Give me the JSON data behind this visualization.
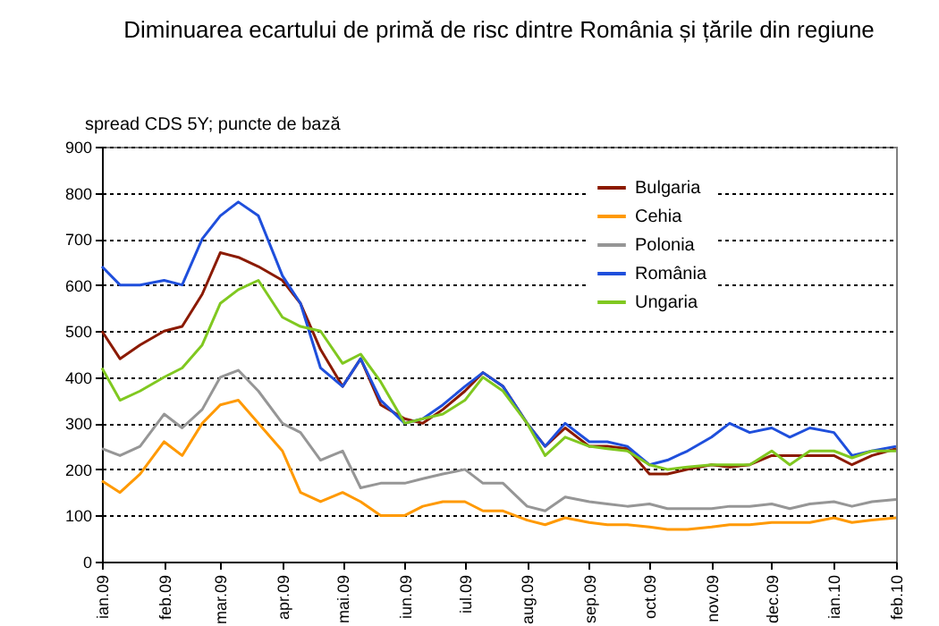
{
  "chart_data": {
    "type": "line",
    "title": "Diminuarea ecartului de primă de risc dintre România și țările din regiune",
    "ylabel": "spread CDS 5Y; puncte de bază",
    "x": [
      "2009-01-01",
      "2009-01-10",
      "2009-01-20",
      "2009-02-01",
      "2009-02-10",
      "2009-02-20",
      "2009-03-01",
      "2009-03-10",
      "2009-03-20",
      "2009-04-01",
      "2009-04-10",
      "2009-04-20",
      "2009-05-01",
      "2009-05-10",
      "2009-05-20",
      "2009-06-01",
      "2009-06-10",
      "2009-06-20",
      "2009-07-01",
      "2009-07-10",
      "2009-07-20",
      "2009-08-01",
      "2009-08-10",
      "2009-08-20",
      "2009-09-01",
      "2009-09-10",
      "2009-09-20",
      "2009-10-01",
      "2009-10-10",
      "2009-10-20",
      "2009-11-01",
      "2009-11-10",
      "2009-11-20",
      "2009-12-01",
      "2009-12-10",
      "2009-12-20",
      "2010-01-01",
      "2010-01-10",
      "2010-01-20",
      "2010-02-01"
    ],
    "series": [
      {
        "name": "Bulgaria",
        "color": "#8b1a00",
        "values": [
          500,
          440,
          470,
          500,
          510,
          580,
          670,
          660,
          640,
          610,
          560,
          460,
          380,
          440,
          340,
          310,
          300,
          330,
          370,
          410,
          380,
          300,
          250,
          290,
          250,
          250,
          245,
          190,
          190,
          200,
          210,
          205,
          210,
          230,
          230,
          230,
          230,
          210,
          230,
          245
        ]
      },
      {
        "name": "Cehia",
        "color": "#ff9900",
        "values": [
          175,
          150,
          190,
          260,
          230,
          300,
          340,
          350,
          300,
          240,
          150,
          130,
          150,
          130,
          100,
          100,
          120,
          130,
          130,
          110,
          110,
          90,
          80,
          95,
          85,
          80,
          80,
          75,
          70,
          70,
          75,
          80,
          80,
          85,
          85,
          85,
          95,
          85,
          90,
          95
        ]
      },
      {
        "name": "Polonia",
        "color": "#969696",
        "values": [
          245,
          230,
          250,
          320,
          290,
          330,
          400,
          415,
          370,
          300,
          280,
          220,
          240,
          160,
          170,
          170,
          180,
          190,
          200,
          170,
          170,
          120,
          110,
          140,
          130,
          125,
          120,
          125,
          115,
          115,
          115,
          120,
          120,
          125,
          115,
          125,
          130,
          120,
          130,
          135
        ]
      },
      {
        "name": "România",
        "color": "#1f4fdc",
        "values": [
          640,
          600,
          600,
          610,
          600,
          700,
          750,
          780,
          750,
          620,
          560,
          420,
          380,
          440,
          350,
          300,
          310,
          340,
          380,
          410,
          380,
          300,
          250,
          300,
          260,
          260,
          250,
          210,
          220,
          240,
          270,
          300,
          280,
          290,
          270,
          290,
          280,
          230,
          240,
          250
        ]
      },
      {
        "name": "Ungaria",
        "color": "#80c820",
        "values": [
          420,
          350,
          370,
          400,
          420,
          470,
          560,
          590,
          610,
          530,
          510,
          500,
          430,
          450,
          390,
          300,
          310,
          320,
          350,
          400,
          370,
          300,
          230,
          270,
          250,
          245,
          240,
          210,
          200,
          205,
          210,
          210,
          210,
          240,
          210,
          240,
          240,
          225,
          240,
          240
        ]
      }
    ],
    "xlim": [
      "2009-01-01",
      "2010-02-01"
    ],
    "xticks": [
      {
        "value": "2009-01-01",
        "label": "ian.09"
      },
      {
        "value": "2009-02-01",
        "label": "feb.09"
      },
      {
        "value": "2009-03-01",
        "label": "mar.09"
      },
      {
        "value": "2009-04-01",
        "label": "apr.09"
      },
      {
        "value": "2009-05-01",
        "label": "mai.09"
      },
      {
        "value": "2009-06-01",
        "label": "iun.09"
      },
      {
        "value": "2009-07-01",
        "label": "iul.09"
      },
      {
        "value": "2009-08-01",
        "label": "aug.09"
      },
      {
        "value": "2009-09-01",
        "label": "sep.09"
      },
      {
        "value": "2009-10-01",
        "label": "oct.09"
      },
      {
        "value": "2009-11-01",
        "label": "nov.09"
      },
      {
        "value": "2009-12-01",
        "label": "dec.09"
      },
      {
        "value": "2010-01-01",
        "label": "ian.10"
      },
      {
        "value": "2010-02-01",
        "label": "feb.10"
      }
    ],
    "ylim": [
      0,
      900
    ],
    "yticks": [
      0,
      100,
      200,
      300,
      400,
      500,
      600,
      700,
      800,
      900
    ],
    "grid": "y",
    "legend": "top right",
    "marker": "none",
    "line_style": "solid"
  }
}
